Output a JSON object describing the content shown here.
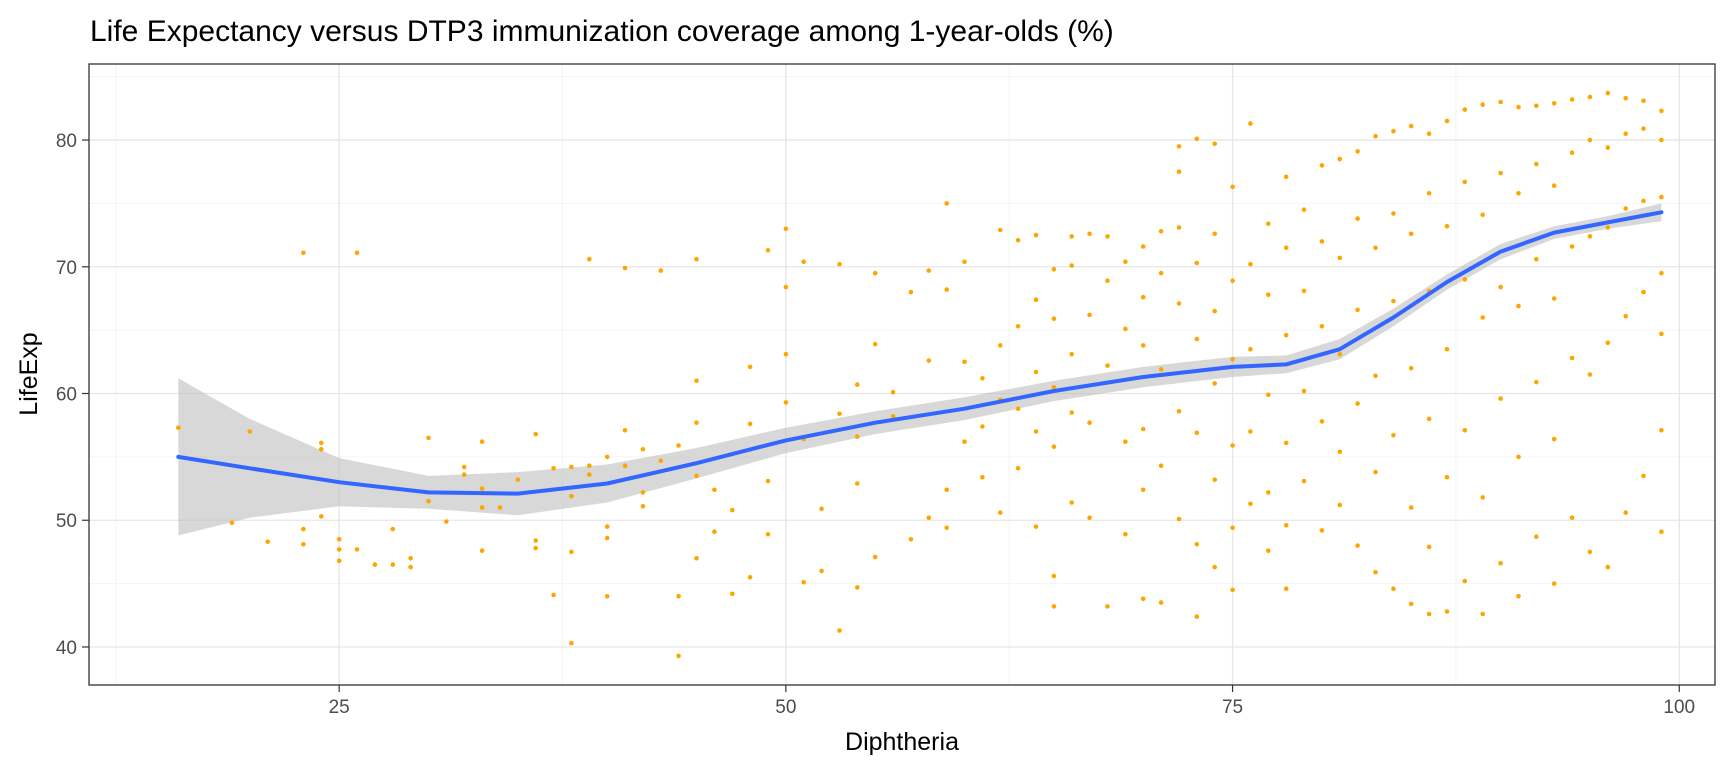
{
  "chart_data": {
    "type": "scatter",
    "title": "Life Expectancy versus DTP3 immunization coverage among 1-year-olds (%)",
    "xlabel": "Diphtheria",
    "ylabel": "LifeExp",
    "xlim": [
      11,
      102
    ],
    "ylim": [
      37,
      86
    ],
    "x_ticks": [
      25,
      50,
      75,
      100
    ],
    "x_tick_labels": [
      "25",
      "50",
      "75",
      "100"
    ],
    "y_ticks": [
      40,
      50,
      60,
      70,
      80
    ],
    "y_tick_labels": [
      "40",
      "50",
      "60",
      "70",
      "80"
    ],
    "grid": true,
    "legend": "none",
    "point_color": "#FFA500",
    "smooth_color": "#3366FF",
    "ribbon_color": "#BEBEBE",
    "smooth": {
      "method": "loess",
      "x": [
        16,
        20,
        25,
        30,
        35,
        40,
        45,
        50,
        55,
        60,
        65,
        70,
        75,
        78,
        81,
        84,
        87,
        90,
        93,
        96,
        99
      ],
      "y": [
        55.0,
        54.1,
        53.0,
        52.2,
        52.1,
        52.9,
        54.5,
        56.3,
        57.7,
        58.8,
        60.2,
        61.3,
        62.1,
        62.3,
        63.5,
        66.0,
        68.8,
        71.2,
        72.7,
        73.5,
        74.3
      ],
      "lower": [
        48.8,
        50.2,
        51.1,
        50.9,
        50.4,
        51.4,
        53.3,
        55.3,
        56.8,
        57.9,
        59.4,
        60.5,
        61.3,
        61.6,
        62.7,
        65.3,
        68.2,
        70.6,
        72.2,
        73.0,
        73.6
      ],
      "upper": [
        61.2,
        58.0,
        54.9,
        53.5,
        53.8,
        54.4,
        55.7,
        57.3,
        58.6,
        59.7,
        61.0,
        62.1,
        62.9,
        63.0,
        64.3,
        66.7,
        69.4,
        71.8,
        73.2,
        74.0,
        75.0
      ]
    },
    "points": [
      [
        16,
        57.3
      ],
      [
        19,
        49.8
      ],
      [
        20,
        57.0
      ],
      [
        21,
        48.3
      ],
      [
        23,
        71.1
      ],
      [
        23,
        49.3
      ],
      [
        23,
        48.1
      ],
      [
        24,
        56.1
      ],
      [
        24,
        55.6
      ],
      [
        24,
        50.3
      ],
      [
        25,
        48.5
      ],
      [
        25,
        47.7
      ],
      [
        25,
        46.8
      ],
      [
        26,
        71.1
      ],
      [
        26,
        47.7
      ],
      [
        27,
        46.5
      ],
      [
        28,
        49.3
      ],
      [
        28,
        46.5
      ],
      [
        29,
        46.3
      ],
      [
        29,
        47.0
      ],
      [
        30,
        56.5
      ],
      [
        30,
        51.5
      ],
      [
        31,
        49.9
      ],
      [
        32,
        53.6
      ],
      [
        32,
        54.2
      ],
      [
        33,
        52.5
      ],
      [
        33,
        51.0
      ],
      [
        33,
        47.6
      ],
      [
        33,
        56.2
      ],
      [
        34,
        51.0
      ],
      [
        35,
        53.2
      ],
      [
        36,
        56.8
      ],
      [
        36,
        48.4
      ],
      [
        36,
        47.8
      ],
      [
        37,
        54.1
      ],
      [
        37,
        44.1
      ],
      [
        38,
        40.3
      ],
      [
        38,
        54.2
      ],
      [
        38,
        51.9
      ],
      [
        38,
        47.5
      ],
      [
        39,
        53.6
      ],
      [
        39,
        70.6
      ],
      [
        39,
        54.3
      ],
      [
        40,
        55.0
      ],
      [
        40,
        49.5
      ],
      [
        40,
        48.6
      ],
      [
        40,
        44.0
      ],
      [
        41,
        57.1
      ],
      [
        41,
        69.9
      ],
      [
        41,
        54.3
      ],
      [
        42,
        55.6
      ],
      [
        42,
        52.2
      ],
      [
        42,
        51.1
      ],
      [
        43,
        69.7
      ],
      [
        43,
        54.7
      ],
      [
        44,
        55.9
      ],
      [
        44,
        44.0
      ],
      [
        44,
        39.3
      ],
      [
        45,
        61.0
      ],
      [
        45,
        57.7
      ],
      [
        45,
        70.6
      ],
      [
        45,
        53.5
      ],
      [
        45,
        47.0
      ],
      [
        46,
        52.4
      ],
      [
        46,
        49.1
      ],
      [
        47,
        50.8
      ],
      [
        47,
        44.2
      ],
      [
        48,
        57.6
      ],
      [
        48,
        62.1
      ],
      [
        48,
        45.5
      ],
      [
        49,
        71.3
      ],
      [
        49,
        53.1
      ],
      [
        49,
        48.9
      ],
      [
        50,
        73.0
      ],
      [
        50,
        68.4
      ],
      [
        50,
        59.3
      ],
      [
        50,
        63.1
      ],
      [
        51,
        56.4
      ],
      [
        51,
        45.1
      ],
      [
        51,
        70.4
      ],
      [
        52,
        46.0
      ],
      [
        52,
        50.9
      ],
      [
        53,
        70.2
      ],
      [
        53,
        41.3
      ],
      [
        53,
        58.4
      ],
      [
        54,
        60.7
      ],
      [
        54,
        56.6
      ],
      [
        54,
        52.9
      ],
      [
        54,
        44.7
      ],
      [
        55,
        69.5
      ],
      [
        55,
        63.9
      ],
      [
        55,
        47.1
      ],
      [
        56,
        58.2
      ],
      [
        56,
        60.1
      ],
      [
        57,
        68.0
      ],
      [
        57,
        48.5
      ],
      [
        58,
        62.6
      ],
      [
        58,
        69.7
      ],
      [
        58,
        50.2
      ],
      [
        59,
        75.0
      ],
      [
        59,
        52.4
      ],
      [
        59,
        68.2
      ],
      [
        59,
        49.4
      ],
      [
        60,
        70.4
      ],
      [
        60,
        62.5
      ],
      [
        60,
        56.2
      ],
      [
        61,
        61.2
      ],
      [
        61,
        57.4
      ],
      [
        61,
        53.4
      ],
      [
        62,
        72.9
      ],
      [
        62,
        63.8
      ],
      [
        62,
        59.5
      ],
      [
        62,
        50.6
      ],
      [
        63,
        72.1
      ],
      [
        63,
        65.3
      ],
      [
        63,
        58.8
      ],
      [
        63,
        54.1
      ],
      [
        64,
        72.5
      ],
      [
        64,
        67.4
      ],
      [
        64,
        61.7
      ],
      [
        64,
        57.0
      ],
      [
        64,
        49.5
      ],
      [
        65,
        69.8
      ],
      [
        65,
        65.9
      ],
      [
        65,
        60.5
      ],
      [
        65,
        55.8
      ],
      [
        65,
        45.6
      ],
      [
        65,
        43.2
      ],
      [
        66,
        72.4
      ],
      [
        66,
        70.1
      ],
      [
        66,
        63.1
      ],
      [
        66,
        58.5
      ],
      [
        66,
        51.4
      ],
      [
        67,
        72.6
      ],
      [
        67,
        66.2
      ],
      [
        67,
        57.7
      ],
      [
        67,
        50.2
      ],
      [
        68,
        72.4
      ],
      [
        68,
        68.9
      ],
      [
        68,
        62.2
      ],
      [
        68,
        43.2
      ],
      [
        69,
        70.4
      ],
      [
        69,
        65.1
      ],
      [
        69,
        56.2
      ],
      [
        69,
        48.9
      ],
      [
        70,
        71.6
      ],
      [
        70,
        67.6
      ],
      [
        70,
        63.8
      ],
      [
        70,
        57.2
      ],
      [
        70,
        52.4
      ],
      [
        70,
        43.8
      ],
      [
        71,
        72.8
      ],
      [
        71,
        69.5
      ],
      [
        71,
        61.9
      ],
      [
        71,
        54.3
      ],
      [
        71,
        43.5
      ],
      [
        72,
        79.5
      ],
      [
        72,
        73.1
      ],
      [
        72,
        67.1
      ],
      [
        72,
        58.6
      ],
      [
        72,
        50.1
      ],
      [
        72,
        77.5
      ],
      [
        73,
        80.1
      ],
      [
        73,
        70.3
      ],
      [
        73,
        64.3
      ],
      [
        73,
        56.9
      ],
      [
        73,
        48.1
      ],
      [
        73,
        42.4
      ],
      [
        74,
        79.7
      ],
      [
        74,
        72.6
      ],
      [
        74,
        66.5
      ],
      [
        74,
        60.8
      ],
      [
        74,
        53.2
      ],
      [
        74,
        46.3
      ],
      [
        75,
        76.3
      ],
      [
        75,
        68.9
      ],
      [
        75,
        62.7
      ],
      [
        75,
        55.9
      ],
      [
        75,
        49.4
      ],
      [
        75,
        44.5
      ],
      [
        76,
        81.3
      ],
      [
        76,
        70.2
      ],
      [
        76,
        63.5
      ],
      [
        76,
        57.0
      ],
      [
        76,
        51.3
      ],
      [
        77,
        73.4
      ],
      [
        77,
        67.8
      ],
      [
        77,
        59.9
      ],
      [
        77,
        52.2
      ],
      [
        77,
        47.6
      ],
      [
        78,
        77.1
      ],
      [
        78,
        71.5
      ],
      [
        78,
        64.6
      ],
      [
        78,
        56.1
      ],
      [
        78,
        49.6
      ],
      [
        78,
        44.6
      ],
      [
        79,
        74.5
      ],
      [
        79,
        68.1
      ],
      [
        79,
        60.2
      ],
      [
        79,
        53.1
      ],
      [
        80,
        78.0
      ],
      [
        80,
        72.0
      ],
      [
        80,
        65.3
      ],
      [
        80,
        57.8
      ],
      [
        80,
        49.2
      ],
      [
        81,
        78.5
      ],
      [
        81,
        70.7
      ],
      [
        81,
        63.1
      ],
      [
        81,
        55.4
      ],
      [
        81,
        51.2
      ],
      [
        82,
        79.1
      ],
      [
        82,
        73.8
      ],
      [
        82,
        66.6
      ],
      [
        82,
        59.2
      ],
      [
        82,
        48.0
      ],
      [
        83,
        80.3
      ],
      [
        83,
        71.5
      ],
      [
        83,
        61.4
      ],
      [
        83,
        53.8
      ],
      [
        83,
        45.9
      ],
      [
        84,
        80.7
      ],
      [
        84,
        74.2
      ],
      [
        84,
        67.3
      ],
      [
        84,
        56.7
      ],
      [
        84,
        44.6
      ],
      [
        85,
        81.1
      ],
      [
        85,
        72.6
      ],
      [
        85,
        62.0
      ],
      [
        85,
        51.0
      ],
      [
        85,
        43.4
      ],
      [
        86,
        80.5
      ],
      [
        86,
        75.8
      ],
      [
        86,
        68.1
      ],
      [
        86,
        58.0
      ],
      [
        86,
        47.9
      ],
      [
        86,
        42.6
      ],
      [
        87,
        81.5
      ],
      [
        87,
        73.2
      ],
      [
        87,
        63.5
      ],
      [
        87,
        53.4
      ],
      [
        87,
        42.8
      ],
      [
        88,
        82.4
      ],
      [
        88,
        76.7
      ],
      [
        88,
        69.0
      ],
      [
        88,
        57.1
      ],
      [
        88,
        45.2
      ],
      [
        89,
        82.8
      ],
      [
        89,
        74.1
      ],
      [
        89,
        66.0
      ],
      [
        89,
        51.8
      ],
      [
        89,
        42.6
      ],
      [
        90,
        83.0
      ],
      [
        90,
        77.4
      ],
      [
        90,
        68.4
      ],
      [
        90,
        59.6
      ],
      [
        90,
        46.6
      ],
      [
        91,
        82.6
      ],
      [
        91,
        75.8
      ],
      [
        91,
        66.9
      ],
      [
        91,
        55.0
      ],
      [
        91,
        44.0
      ],
      [
        92,
        82.7
      ],
      [
        92,
        78.1
      ],
      [
        92,
        70.6
      ],
      [
        92,
        60.9
      ],
      [
        92,
        48.7
      ],
      [
        93,
        82.9
      ],
      [
        93,
        76.4
      ],
      [
        93,
        67.5
      ],
      [
        93,
        56.4
      ],
      [
        93,
        45.0
      ],
      [
        94,
        83.2
      ],
      [
        94,
        79.0
      ],
      [
        94,
        71.6
      ],
      [
        94,
        62.8
      ],
      [
        94,
        50.2
      ],
      [
        95,
        83.4
      ],
      [
        95,
        80.0
      ],
      [
        95,
        72.4
      ],
      [
        95,
        61.5
      ],
      [
        95,
        47.5
      ],
      [
        96,
        83.7
      ],
      [
        96,
        79.4
      ],
      [
        96,
        73.1
      ],
      [
        96,
        64.0
      ],
      [
        96,
        46.3
      ],
      [
        97,
        83.3
      ],
      [
        97,
        80.5
      ],
      [
        97,
        74.6
      ],
      [
        97,
        66.1
      ],
      [
        97,
        50.6
      ],
      [
        98,
        83.1
      ],
      [
        98,
        80.9
      ],
      [
        98,
        75.2
      ],
      [
        98,
        68.0
      ],
      [
        98,
        53.5
      ],
      [
        99,
        82.3
      ],
      [
        99,
        80.0
      ],
      [
        99,
        75.5
      ],
      [
        99,
        69.5
      ],
      [
        99,
        64.7
      ],
      [
        99,
        57.1
      ],
      [
        99,
        49.1
      ]
    ]
  }
}
